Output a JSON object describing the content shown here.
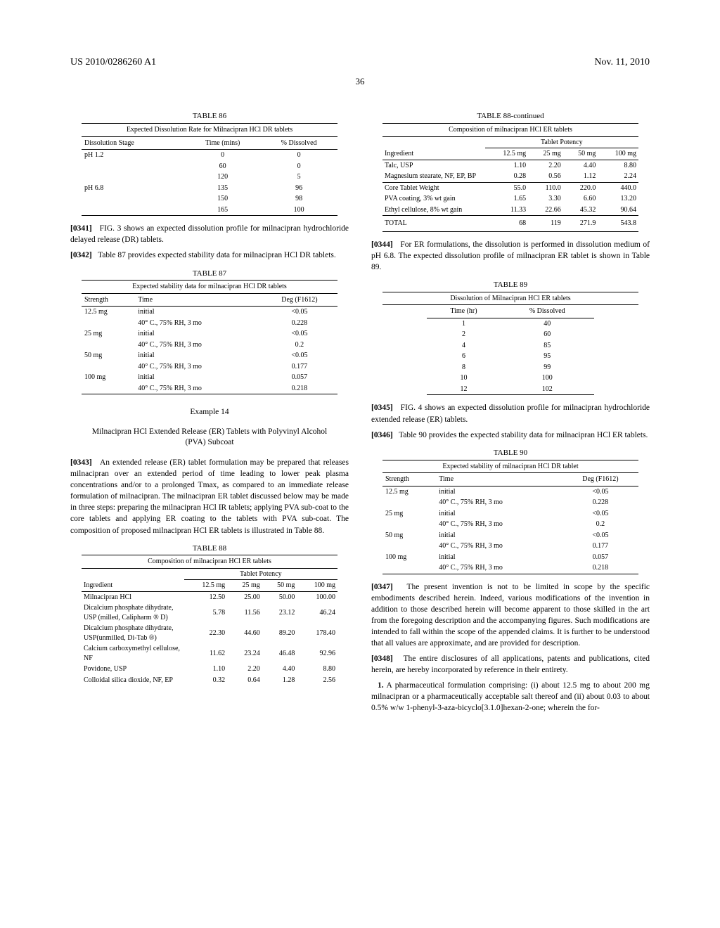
{
  "header": {
    "doc_id": "US 2010/0286260 A1",
    "date": "Nov. 11, 2010",
    "page_number": "36"
  },
  "table86": {
    "caption": "TABLE 86",
    "title": "Expected Dissolution Rate for Milnacipran HCl DR tablets",
    "headers": [
      "Dissolution Stage",
      "Time (mins)",
      "% Dissolved"
    ],
    "rows": [
      [
        "pH 1.2",
        "0",
        "0"
      ],
      [
        "",
        "60",
        "0"
      ],
      [
        "",
        "120",
        "5"
      ],
      [
        "pH 6.8",
        "135",
        "96"
      ],
      [
        "",
        "150",
        "98"
      ],
      [
        "",
        "165",
        "100"
      ]
    ]
  },
  "para0341": {
    "num": "[0341]",
    "text": "FIG. 3 shows an expected dissolution profile for milnacipran hydrochloride delayed release (DR) tablets."
  },
  "para0342": {
    "num": "[0342]",
    "text": "Table 87 provides expected stability data for milnacipran HCl DR tablets."
  },
  "table87": {
    "caption": "TABLE 87",
    "title": "Expected stability data for milnacipran HCl DR tablets",
    "headers": [
      "Strength",
      "Time",
      "Deg (F1612)"
    ],
    "rows": [
      [
        "12.5 mg",
        "initial",
        "<0.05"
      ],
      [
        "",
        "40° C., 75% RH, 3 mo",
        "0.228"
      ],
      [
        "25 mg",
        "initial",
        "<0.05"
      ],
      [
        "",
        "40° C., 75% RH, 3 mo",
        "0.2"
      ],
      [
        "50 mg",
        "initial",
        "<0.05"
      ],
      [
        "",
        "40° C., 75% RH, 3 mo",
        "0.177"
      ],
      [
        "100 mg",
        "initial",
        "0.057"
      ],
      [
        "",
        "40° C., 75% RH, 3 mo",
        "0.218"
      ]
    ]
  },
  "example14": {
    "label": "Example 14",
    "title": "Milnacipran HCl Extended Release (ER) Tablets with Polyvinyl Alcohol (PVA) Subcoat"
  },
  "para0343": {
    "num": "[0343]",
    "text": "An extended release (ER) tablet formulation may be prepared that releases milnacipran over an extended period of time leading to lower peak plasma concentrations and/or to a prolonged Tmax, as compared to an immediate release formulation of milnacipran. The milnacipran ER tablet discussed below may be made in three steps: preparing the milnacipran HCl IR tablets; applying PVA sub-coat to the core tablets and applying ER coating to the tablets with PVA sub-coat. The composition of proposed milnacipran HCl ER tablets is illustrated in Table 88."
  },
  "table88": {
    "caption": "TABLE 88",
    "title": "Composition of milnacipran HCl ER tablets",
    "subhead": "Tablet Potency",
    "col_headers": [
      "Ingredient",
      "12.5 mg",
      "25 mg",
      "50 mg",
      "100 mg"
    ],
    "rows": [
      [
        "Milnacipran HCl",
        "12.50",
        "25.00",
        "50.00",
        "100.00"
      ],
      [
        "Dicalcium phosphate dihydrate, USP (milled, Calipharm ® D)",
        "5.78",
        "11.56",
        "23.12",
        "46.24"
      ],
      [
        "Dicalcium phosphate dihydrate, USP(unmilled, Di-Tab ®)",
        "22.30",
        "44.60",
        "89.20",
        "178.40"
      ],
      [
        "Calcium carboxymethyl cellulose, NF",
        "11.62",
        "23.24",
        "46.48",
        "92.96"
      ],
      [
        "Povidone, USP",
        "1.10",
        "2.20",
        "4.40",
        "8.80"
      ],
      [
        "Colloidal silica dioxide, NF, EP",
        "0.32",
        "0.64",
        "1.28",
        "2.56"
      ]
    ]
  },
  "table88cont": {
    "caption": "TABLE 88-continued",
    "title": "Composition of milnacipran HCl ER tablets",
    "subhead": "Tablet Potency",
    "col_headers": [
      "Ingredient",
      "12.5 mg",
      "25 mg",
      "50 mg",
      "100 mg"
    ],
    "rows": [
      [
        "Talc, USP",
        "1.10",
        "2.20",
        "4.40",
        "8.80"
      ],
      [
        "Magnesium stearate, NF, EP, BP",
        "0.28",
        "0.56",
        "1.12",
        "2.24"
      ]
    ],
    "sep_rows": [
      [
        "Core Tablet Weight",
        "55.0",
        "110.0",
        "220.0",
        "440.0"
      ],
      [
        "PVA coating, 3% wt gain",
        "1.65",
        "3.30",
        "6.60",
        "13.20"
      ],
      [
        "Ethyl cellulose, 8% wt gain",
        "11.33",
        "22.66",
        "45.32",
        "90.64"
      ]
    ],
    "total": [
      "TOTAL",
      "68",
      "119",
      "271.9",
      "543.8"
    ]
  },
  "para0344": {
    "num": "[0344]",
    "text": "For ER formulations, the dissolution is performed in dissolution medium of pH 6.8. The expected dissolution profile of milnacipran ER tablet is shown in Table 89."
  },
  "table89": {
    "caption": "TABLE 89",
    "title": "Dissolution of Milnacipran HCl ER tablets",
    "headers": [
      "Time (hr)",
      "% Dissolved"
    ],
    "rows": [
      [
        "1",
        "40"
      ],
      [
        "2",
        "60"
      ],
      [
        "4",
        "85"
      ],
      [
        "6",
        "95"
      ],
      [
        "8",
        "99"
      ],
      [
        "10",
        "100"
      ],
      [
        "12",
        "102"
      ]
    ]
  },
  "para0345": {
    "num": "[0345]",
    "text": "FIG. 4 shows an expected dissolution profile for milnacipran hydrochloride extended release (ER) tablets."
  },
  "para0346": {
    "num": "[0346]",
    "text": "Table 90 provides the expected stability data for milnacipran HCl ER tablets."
  },
  "table90": {
    "caption": "TABLE 90",
    "title": "Expected stability of milnacipran HCl DR tablet",
    "headers": [
      "Strength",
      "Time",
      "Deg (F1612)"
    ],
    "rows": [
      [
        "12.5 mg",
        "initial",
        "<0.05"
      ],
      [
        "",
        "40° C., 75% RH, 3 mo",
        "0.228"
      ],
      [
        "25 mg",
        "initial",
        "<0.05"
      ],
      [
        "",
        "40° C., 75% RH, 3 mo",
        "0.2"
      ],
      [
        "50 mg",
        "initial",
        "<0.05"
      ],
      [
        "",
        "40° C., 75% RH, 3 mo",
        "0.177"
      ],
      [
        "100 mg",
        "initial",
        "0.057"
      ],
      [
        "",
        "40° C., 75% RH, 3 mo",
        "0.218"
      ]
    ]
  },
  "para0347": {
    "num": "[0347]",
    "text": "The present invention is not to be limited in scope by the specific embodiments described herein. Indeed, various modifications of the invention in addition to those described herein will become apparent to those skilled in the art from the foregoing description and the accompanying figures. Such modifications are intended to fall within the scope of the appended claims. It is further to be understood that all values are approximate, and are provided for description."
  },
  "para0348": {
    "num": "[0348]",
    "text": "The entire disclosures of all applications, patents and publications, cited herein, are hereby incorporated by reference in their entirety."
  },
  "claim1": {
    "num": "1.",
    "text": " A pharmaceutical formulation comprising: (i) about 12.5 mg to about 200 mg milnacipran or a pharmaceutically acceptable salt thereof and (ii) about 0.03 to about 0.5% w/w 1-phenyl-3-aza-bicyclo[3.1.0]hexan-2-one; wherein the for-"
  }
}
